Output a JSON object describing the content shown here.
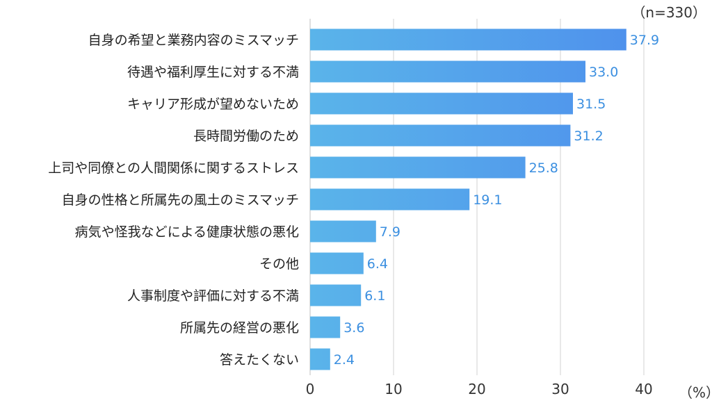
{
  "chart_data": {
    "type": "bar",
    "orientation": "horizontal",
    "categories": [
      "自身の希望と業務内容のミスマッチ",
      "待遇や福利厚生に対する不満",
      "キャリア形成が望めないため",
      "長時間労働のため",
      "上司や同僚との人間関係に関するストレス",
      "自身の性格と所属先の風土のミスマッチ",
      "病気や怪我などによる健康状態の悪化",
      "その他",
      "人事制度や評価に対する不満",
      "所属先の経営の悪化",
      "答えたくない"
    ],
    "values": [
      37.9,
      33.0,
      31.5,
      31.2,
      25.8,
      19.1,
      7.9,
      6.4,
      6.1,
      3.6,
      2.4
    ],
    "value_labels": [
      "37.9",
      "33.0",
      "31.5",
      "31.2",
      "25.8",
      "19.1",
      "7.9",
      "6.4",
      "6.1",
      "3.6",
      "2.4"
    ],
    "xlim": [
      0,
      40
    ],
    "xticks": [
      0,
      10,
      20,
      30,
      40
    ],
    "x_unit_label": "（%）",
    "sample_note": "（n=330）",
    "grid": "vertical",
    "colors": {
      "bar_start": "#5ab4ea",
      "bar_end": "#4f92ec",
      "value_label": "#3b8fe0",
      "category_label": "#222222",
      "tick_label": "#333333",
      "grid": "#d0d0d0"
    }
  }
}
